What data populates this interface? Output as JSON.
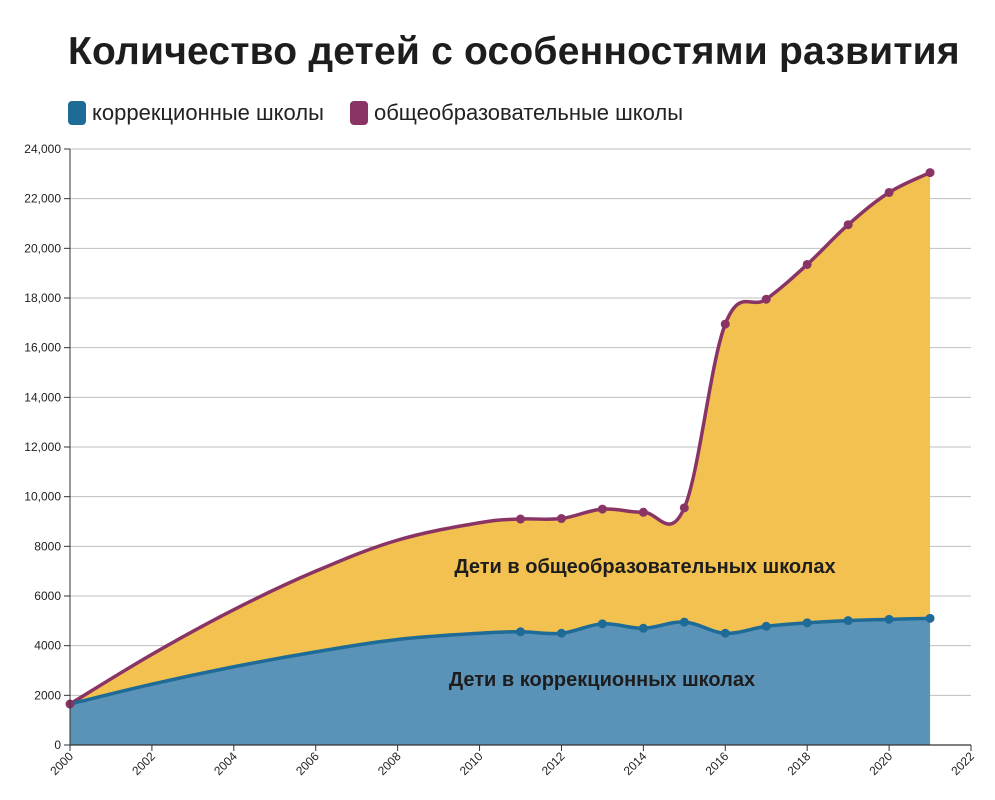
{
  "colors": {
    "blue_area": "#5b93b8",
    "blue_line": "#1e6b97",
    "yellow_area": "#f2c14f",
    "purple_line": "#8a3466",
    "grid": "#bfbfbf",
    "axis": "#333333"
  },
  "chart_data": {
    "type": "area",
    "title": "Количество детей с особенностями развития",
    "legend_placement": "top-left",
    "grid": true,
    "xlim": [
      2000,
      2022
    ],
    "ylim": [
      0,
      24000
    ],
    "x_ticks": [
      "2000",
      "2002",
      "2004",
      "2006",
      "2008",
      "2010",
      "2012",
      "2014",
      "2016",
      "2018",
      "2020",
      "2022"
    ],
    "y_ticks": [
      "0",
      "2000",
      "4000",
      "6000",
      "8000",
      "10,000",
      "12,000",
      "14,000",
      "16,000",
      "18,000",
      "20,000",
      "22,000",
      "24,000"
    ],
    "series": [
      {
        "name": "коррекционные школы",
        "color": "#1e6b97",
        "area_label": "Дети в коррекционных школах",
        "curve": [
          [
            2000,
            1650
          ],
          [
            2002,
            2450
          ],
          [
            2004,
            3150
          ],
          [
            2006,
            3750
          ],
          [
            2008,
            4250
          ],
          [
            2010,
            4500
          ],
          [
            2011,
            4560
          ],
          [
            2012,
            4500
          ],
          [
            2013,
            4880
          ],
          [
            2014,
            4700
          ],
          [
            2015,
            4950
          ],
          [
            2016,
            4500
          ],
          [
            2017,
            4780
          ],
          [
            2018,
            4920
          ],
          [
            2019,
            5010
          ],
          [
            2020,
            5060
          ],
          [
            2021,
            5100
          ]
        ],
        "markers": [
          [
            2011,
            4560
          ],
          [
            2012,
            4500
          ],
          [
            2013,
            4880
          ],
          [
            2014,
            4700
          ],
          [
            2015,
            4950
          ],
          [
            2016,
            4500
          ],
          [
            2017,
            4780
          ],
          [
            2018,
            4920
          ],
          [
            2019,
            5010
          ],
          [
            2020,
            5060
          ],
          [
            2021,
            5100
          ]
        ]
      },
      {
        "name": "общеобразовательные школы",
        "color": "#8a3466",
        "area_label": "Дети в общеобразовательных школах",
        "curve": [
          [
            2000,
            1650
          ],
          [
            2002,
            3650
          ],
          [
            2004,
            5450
          ],
          [
            2006,
            7000
          ],
          [
            2008,
            8250
          ],
          [
            2010,
            8950
          ],
          [
            2011,
            9100
          ],
          [
            2012,
            9120
          ],
          [
            2013,
            9500
          ],
          [
            2014,
            9370
          ],
          [
            2015,
            9550
          ],
          [
            2016,
            16950
          ],
          [
            2017,
            17950
          ],
          [
            2018,
            19350
          ],
          [
            2019,
            20950
          ],
          [
            2020,
            22250
          ],
          [
            2021,
            23050
          ]
        ],
        "markers": [
          [
            2000,
            1650
          ],
          [
            2011,
            9100
          ],
          [
            2012,
            9120
          ],
          [
            2013,
            9500
          ],
          [
            2014,
            9370
          ],
          [
            2015,
            9550
          ],
          [
            2016,
            16950
          ],
          [
            2017,
            17950
          ],
          [
            2018,
            19350
          ],
          [
            2019,
            20950
          ],
          [
            2020,
            22250
          ],
          [
            2021,
            23050
          ]
        ]
      }
    ]
  }
}
